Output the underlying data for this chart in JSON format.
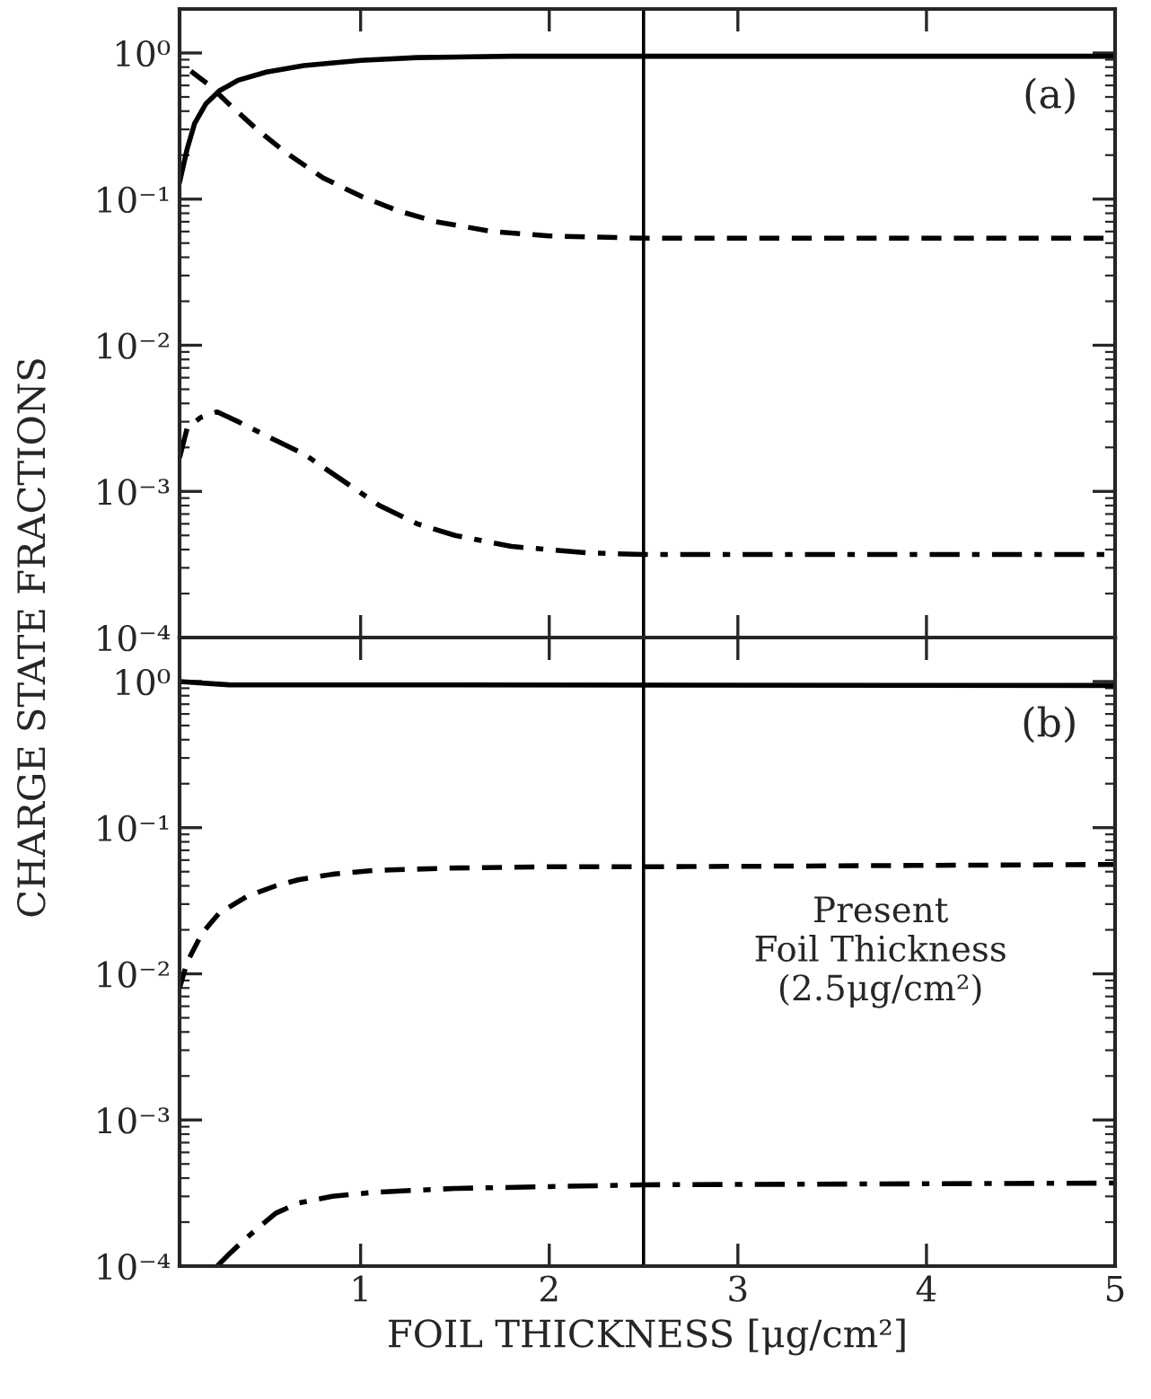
{
  "chart_data": [
    {
      "type": "line",
      "ylabel": "CHARGE STATE FRACTIONS",
      "log": "y",
      "xlim": [
        0.04,
        5
      ],
      "ylim": [
        0.0001,
        2
      ],
      "xticks": [
        1,
        2,
        3,
        4,
        5
      ],
      "yticks": [
        {
          "value": 0.0001,
          "label": "10⁻⁴"
        },
        {
          "value": 0.001,
          "label": "10⁻³"
        },
        {
          "value": 0.01,
          "label": "10⁻²"
        },
        {
          "value": 0.1,
          "label": "10⁻¹"
        },
        {
          "value": 1,
          "label": "10⁰"
        }
      ],
      "tick_labels": "y",
      "grid": false,
      "annotations": [
        "(a)"
      ],
      "ref_lines": [
        {
          "axis": "x",
          "value": 2.5,
          "label": null,
          "color": "#000000"
        }
      ],
      "series": [
        {
          "color": "#000000",
          "line_style": "solid",
          "x": [
            0.04,
            0.08,
            0.12,
            0.18,
            0.25,
            0.35,
            0.5,
            0.7,
            1.0,
            1.3,
            1.8,
            2.5,
            5
          ],
          "values": [
            0.13,
            0.22,
            0.33,
            0.45,
            0.55,
            0.65,
            0.74,
            0.82,
            0.89,
            0.93,
            0.95,
            0.95,
            0.95
          ]
        },
        {
          "color": "#000000",
          "line_style": "dashed",
          "x": [
            0.1,
            0.2,
            0.3,
            0.45,
            0.6,
            0.8,
            1.0,
            1.2,
            1.4,
            1.7,
            2.0,
            2.5,
            5
          ],
          "values": [
            0.75,
            0.6,
            0.45,
            0.3,
            0.21,
            0.14,
            0.105,
            0.083,
            0.07,
            0.06,
            0.056,
            0.054,
            0.054
          ]
        },
        {
          "color": "#000000",
          "line_style": "dashdot",
          "x": [
            0.04,
            0.08,
            0.15,
            0.24,
            0.35,
            0.5,
            0.7,
            0.9,
            1.1,
            1.3,
            1.5,
            1.8,
            2.2,
            2.5,
            5
          ],
          "values": [
            0.0017,
            0.0027,
            0.0032,
            0.0035,
            0.003,
            0.0024,
            0.0018,
            0.0012,
            0.0008,
            0.0006,
            0.0005,
            0.00042,
            0.00038,
            0.00037,
            0.00037
          ]
        }
      ]
    },
    {
      "type": "line",
      "xlabel": "FOIL THICKNESS [μg/cm²]",
      "log": "y",
      "xlim": [
        0.04,
        5
      ],
      "ylim": [
        0.0001,
        2
      ],
      "xticks": [
        1,
        2,
        3,
        4,
        5
      ],
      "yticks": [
        {
          "value": 0.0001,
          "label": "10⁻⁴"
        },
        {
          "value": 0.001,
          "label": "10⁻³"
        },
        {
          "value": 0.01,
          "label": "10⁻²"
        },
        {
          "value": 0.1,
          "label": "10⁻¹"
        },
        {
          "value": 1,
          "label": "10⁰"
        }
      ],
      "grid": false,
      "annotations": [
        "(b)"
      ],
      "ref_lines": [
        {
          "axis": "x",
          "value": 2.5,
          "label": "Present\nFoil Thickness\n(2.5μg/cm²)",
          "color": "#000000"
        }
      ],
      "series": [
        {
          "color": "#000000",
          "line_style": "solid",
          "x": [
            0.04,
            0.3,
            5
          ],
          "values": [
            1.0,
            0.95,
            0.94
          ]
        },
        {
          "color": "#000000",
          "line_style": "dashed",
          "x": [
            0.04,
            0.08,
            0.16,
            0.25,
            0.4,
            0.55,
            0.67,
            0.85,
            1.07,
            1.5,
            2.0,
            2.5,
            5
          ],
          "values": [
            0.008,
            0.012,
            0.019,
            0.026,
            0.034,
            0.04,
            0.044,
            0.048,
            0.051,
            0.053,
            0.054,
            0.054,
            0.056
          ]
        },
        {
          "color": "#000000",
          "line_style": "dashdot",
          "x": [
            0.24,
            0.3,
            0.38,
            0.45,
            0.55,
            0.67,
            0.85,
            1.07,
            1.5,
            2.0,
            2.5,
            5
          ],
          "values": [
            0.0001,
            0.00012,
            0.00015,
            0.00018,
            0.00023,
            0.00027,
            0.0003,
            0.00032,
            0.00034,
            0.00035,
            0.00036,
            0.00037
          ]
        }
      ]
    }
  ]
}
